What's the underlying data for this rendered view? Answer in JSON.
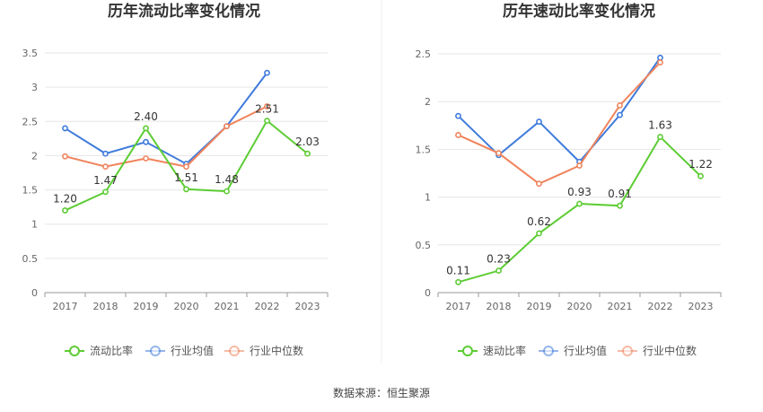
{
  "source_text": "数据来源：恒生聚源",
  "colors": {
    "company": "#5ccc33",
    "industry_avg": "#3f7bdc",
    "industry_median": "#f0845c",
    "grid": "#e6e6e6",
    "axis": "#999999"
  },
  "chart_data": [
    {
      "type": "line",
      "title": "历年流动比率变化情况",
      "x": [
        "2017",
        "2018",
        "2019",
        "2020",
        "2021",
        "2022",
        "2023"
      ],
      "ylim": [
        0,
        3.5
      ],
      "yticks": [
        "0",
        "0.5",
        "1",
        "1.5",
        "2",
        "2.5",
        "3",
        "3.5"
      ],
      "grid": true,
      "legend_position": "bottom",
      "series": [
        {
          "name": "流动比率",
          "key": "company",
          "values": [
            1.2,
            1.47,
            2.4,
            1.51,
            1.48,
            2.51,
            2.03
          ],
          "labels": [
            "1.20",
            "1.47",
            "2.40",
            "1.51",
            "1.48",
            "2.51",
            "2.03"
          ]
        },
        {
          "name": "行业均值",
          "key": "industry_avg",
          "values": [
            2.4,
            2.03,
            2.2,
            1.88,
            2.43,
            3.21,
            null
          ]
        },
        {
          "name": "行业中位数",
          "key": "industry_median",
          "values": [
            1.99,
            1.84,
            1.96,
            1.84,
            2.43,
            2.72,
            null
          ]
        }
      ]
    },
    {
      "type": "line",
      "title": "历年速动比率变化情况",
      "x": [
        "2017",
        "2018",
        "2019",
        "2020",
        "2021",
        "2022",
        "2023"
      ],
      "ylim": [
        0,
        2.5
      ],
      "yticks": [
        "0",
        "0.5",
        "1",
        "1.5",
        "2",
        "2.5"
      ],
      "grid": true,
      "legend_position": "bottom",
      "series": [
        {
          "name": "速动比率",
          "key": "company",
          "values": [
            0.11,
            0.23,
            0.62,
            0.93,
            0.91,
            1.63,
            1.22
          ],
          "labels": [
            "0.11",
            "0.23",
            "0.62",
            "0.93",
            "0.91",
            "1.63",
            "1.22"
          ]
        },
        {
          "name": "行业均值",
          "key": "industry_avg",
          "values": [
            1.85,
            1.44,
            1.79,
            1.37,
            1.86,
            2.46,
            null
          ]
        },
        {
          "name": "行业中位数",
          "key": "industry_median",
          "values": [
            1.65,
            1.46,
            1.14,
            1.33,
            1.96,
            2.41,
            null
          ]
        }
      ]
    }
  ]
}
